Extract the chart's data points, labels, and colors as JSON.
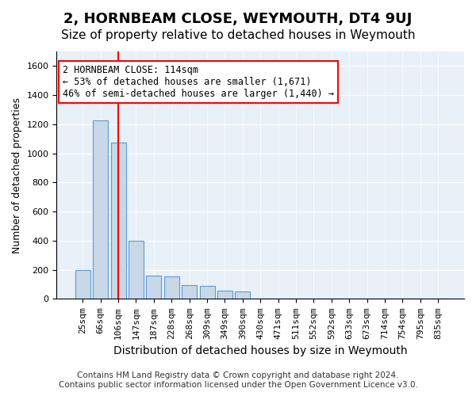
{
  "title": "2, HORNBEAM CLOSE, WEYMOUTH, DT4 9UJ",
  "subtitle": "Size of property relative to detached houses in Weymouth",
  "xlabel": "Distribution of detached houses by size in Weymouth",
  "ylabel": "Number of detached properties",
  "bar_values": [
    200,
    1225,
    1075,
    400,
    160,
    155,
    95,
    90,
    55,
    50,
    0,
    0,
    0,
    0,
    0,
    0,
    0,
    0,
    0,
    0,
    0
  ],
  "bar_labels": [
    "25sqm",
    "66sqm",
    "106sqm",
    "147sqm",
    "187sqm",
    "228sqm",
    "268sqm",
    "309sqm",
    "349sqm",
    "390sqm",
    "430sqm",
    "471sqm",
    "511sqm",
    "552sqm",
    "592sqm",
    "633sqm",
    "673sqm",
    "714sqm",
    "754sqm",
    "795sqm",
    "835sqm"
  ],
  "bar_color": "#c8d8e8",
  "bar_edge_color": "#5b9bd5",
  "ylim": [
    0,
    1700
  ],
  "yticks": [
    0,
    200,
    400,
    600,
    800,
    1000,
    1200,
    1400,
    1600
  ],
  "red_line_x": 2.0,
  "annotation_text": "2 HORNBEAM CLOSE: 114sqm\n← 53% of detached houses are smaller (1,671)\n46% of semi-detached houses are larger (1,440) →",
  "footer_line1": "Contains HM Land Registry data © Crown copyright and database right 2024.",
  "footer_line2": "Contains public sector information licensed under the Open Government Licence v3.0.",
  "bg_color": "#e8f0f8",
  "grid_color": "#ffffff",
  "title_fontsize": 13,
  "subtitle_fontsize": 11,
  "xlabel_fontsize": 10,
  "ylabel_fontsize": 9,
  "tick_fontsize": 8,
  "annotation_fontsize": 8.5,
  "footer_fontsize": 7.5
}
